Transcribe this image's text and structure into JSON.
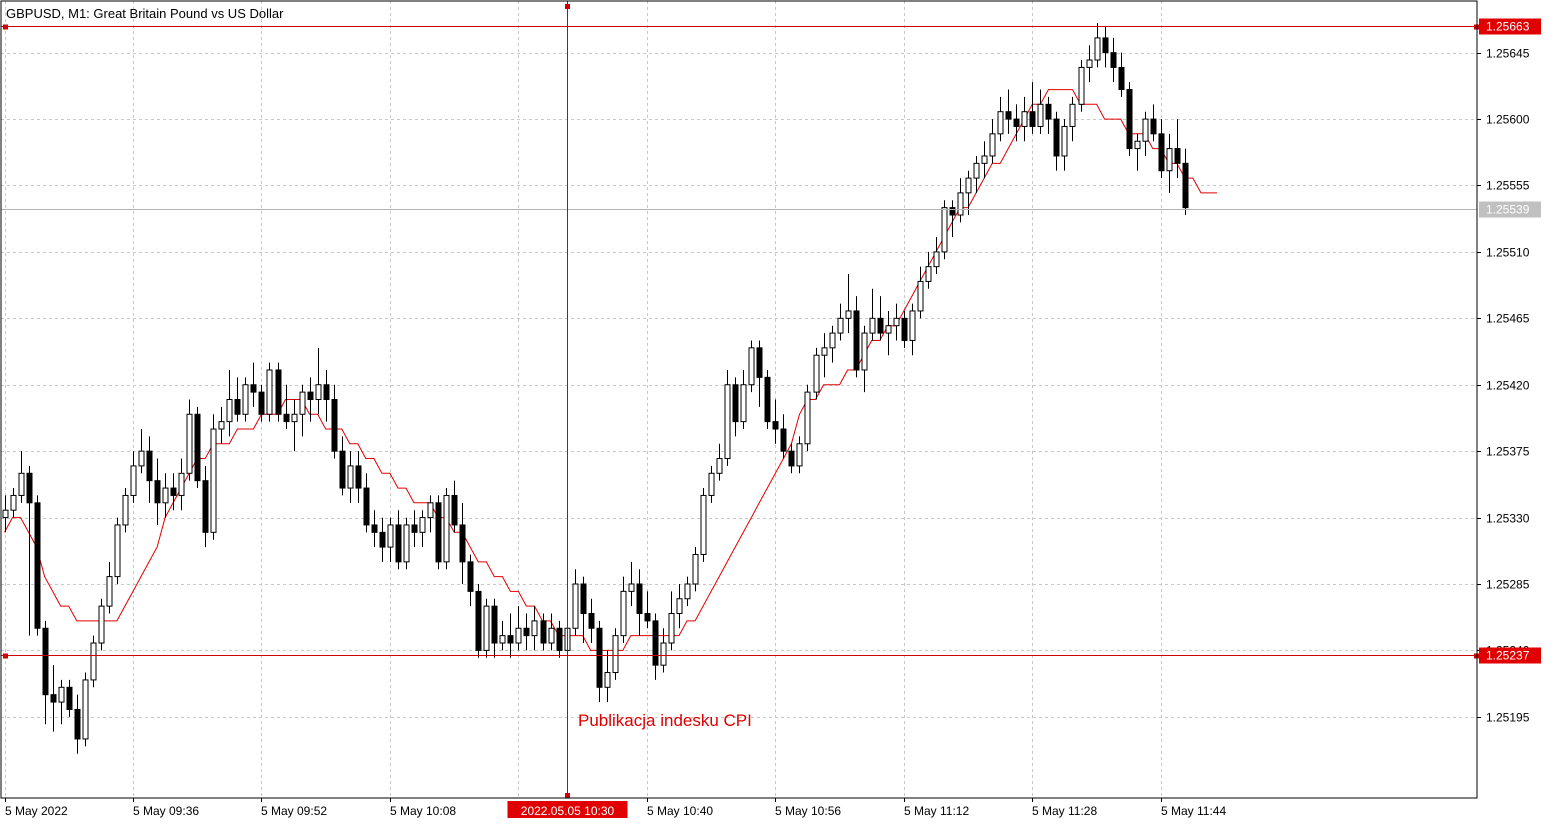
{
  "header": {
    "title": "GBPUSD, M1:  Great Britain Pound vs US Dollar"
  },
  "colors": {
    "background": "#ffffff",
    "grid": "#c8c8c8",
    "frame": "#000000",
    "bull_body": "#ffffff",
    "bear_body": "#000000",
    "candle_outline": "#000000",
    "moving_average": "#e00000",
    "crosshair": "#d00000",
    "price_label_bg": "#e00000",
    "price_label_text": "#ffffff",
    "current_price_line": "#b4b4b4",
    "current_price_label_bg": "#c0c0c0",
    "annotation": "#e00000"
  },
  "annotation": {
    "text": "Publikacja indesku CPI"
  },
  "chart_data": {
    "type": "candlestick",
    "symbol": "GBPUSD",
    "timeframe": "M1",
    "grid": true,
    "ylim": [
      1.2514,
      1.2568
    ],
    "y_ticks": [
      "1.25195",
      "1.25240",
      "1.25285",
      "1.25330",
      "1.25375",
      "1.25420",
      "1.25465",
      "1.25510",
      "1.25555",
      "1.25600",
      "1.25645"
    ],
    "x_ticks": [
      {
        "index": 0,
        "label": "5 May 2022"
      },
      {
        "index": 16,
        "label": "5 May 09:36"
      },
      {
        "index": 32,
        "label": "5 May 09:52"
      },
      {
        "index": 48,
        "label": "5 May 10:08"
      },
      {
        "index": 80,
        "label": "5 May 10:40"
      },
      {
        "index": 96,
        "label": "5 May 10:56"
      },
      {
        "index": 112,
        "label": "5 May 11:12"
      },
      {
        "index": 128,
        "label": "5 May 11:28"
      },
      {
        "index": 144,
        "label": "5 May 11:44"
      }
    ],
    "crosshair": {
      "index": 70,
      "time_label": "2022.05.05 10:30",
      "upper_price": "1.25663",
      "lower_price": "1.25237"
    },
    "current_price": "1.25539",
    "moving_average": {
      "values": [
        1.2532,
        1.2533,
        1.2533,
        1.2532,
        1.2531,
        1.2529,
        1.2528,
        1.2527,
        1.2527,
        1.2526,
        1.2526,
        1.2526,
        1.2526,
        1.2526,
        1.2526,
        1.2527,
        1.2528,
        1.2529,
        1.253,
        1.2531,
        1.2533,
        1.2534,
        1.2535,
        1.2536,
        1.2537,
        1.2537,
        1.2538,
        1.2538,
        1.2538,
        1.2539,
        1.2539,
        1.2539,
        1.254,
        1.254,
        1.254,
        1.2541,
        1.2541,
        1.2541,
        1.254,
        1.254,
        1.2539,
        1.2539,
        1.2539,
        1.2538,
        1.2538,
        1.2537,
        1.2537,
        1.2536,
        1.2536,
        1.2535,
        1.2535,
        1.2534,
        1.2534,
        1.2534,
        1.2533,
        1.2533,
        1.2532,
        1.2532,
        1.2531,
        1.253,
        1.253,
        1.2529,
        1.2529,
        1.2528,
        1.2528,
        1.2527,
        1.2527,
        1.2526,
        1.2526,
        1.2525,
        1.2525,
        1.2525,
        1.2525,
        1.2524,
        1.2524,
        1.2524,
        1.2524,
        1.2524,
        1.2525,
        1.2525,
        1.2525,
        1.2525,
        1.2525,
        1.2525,
        1.2525,
        1.2526,
        1.2526,
        1.2527,
        1.2528,
        1.2529,
        1.253,
        1.2531,
        1.2532,
        1.2533,
        1.2534,
        1.2535,
        1.2536,
        1.2537,
        1.2538,
        1.254,
        1.2541,
        1.2541,
        1.2542,
        1.2542,
        1.2542,
        1.2543,
        1.2543,
        1.2544,
        1.2545,
        1.2545,
        1.2546,
        1.2546,
        1.2547,
        1.2548,
        1.2549,
        1.255,
        1.2551,
        1.2552,
        1.2553,
        1.2554,
        1.2554,
        1.2555,
        1.2556,
        1.2557,
        1.2557,
        1.2558,
        1.2559,
        1.256,
        1.2561,
        1.2561,
        1.2562,
        1.2562,
        1.2562,
        1.2562,
        1.2561,
        1.2561,
        1.2561,
        1.256,
        1.256,
        1.256,
        1.2559,
        1.2559,
        1.2559,
        1.2558,
        1.2558,
        1.2557,
        1.2557,
        1.2556,
        1.2556,
        1.2555,
        1.2555,
        1.2555
      ]
    },
    "candles": [
      {
        "o": 1.2533,
        "h": 1.25345,
        "l": 1.2532,
        "c": 1.25335
      },
      {
        "o": 1.25335,
        "h": 1.2535,
        "l": 1.2533,
        "c": 1.25345
      },
      {
        "o": 1.25345,
        "h": 1.25375,
        "l": 1.2534,
        "c": 1.2536
      },
      {
        "o": 1.2536,
        "h": 1.25365,
        "l": 1.2525,
        "c": 1.2534
      },
      {
        "o": 1.2534,
        "h": 1.25345,
        "l": 1.2525,
        "c": 1.25255
      },
      {
        "o": 1.25255,
        "h": 1.2526,
        "l": 1.2519,
        "c": 1.2521
      },
      {
        "o": 1.2521,
        "h": 1.2523,
        "l": 1.25185,
        "c": 1.25205
      },
      {
        "o": 1.25205,
        "h": 1.2522,
        "l": 1.2519,
        "c": 1.25215
      },
      {
        "o": 1.25215,
        "h": 1.2522,
        "l": 1.25195,
        "c": 1.252
      },
      {
        "o": 1.252,
        "h": 1.2521,
        "l": 1.2517,
        "c": 1.2518
      },
      {
        "o": 1.2518,
        "h": 1.25225,
        "l": 1.25175,
        "c": 1.2522
      },
      {
        "o": 1.2522,
        "h": 1.2525,
        "l": 1.25215,
        "c": 1.25245
      },
      {
        "o": 1.25245,
        "h": 1.25275,
        "l": 1.2524,
        "c": 1.2527
      },
      {
        "o": 1.2527,
        "h": 1.253,
        "l": 1.25265,
        "c": 1.2529
      },
      {
        "o": 1.2529,
        "h": 1.2533,
        "l": 1.25285,
        "c": 1.25325
      },
      {
        "o": 1.25325,
        "h": 1.2535,
        "l": 1.2532,
        "c": 1.25345
      },
      {
        "o": 1.25345,
        "h": 1.25375,
        "l": 1.2534,
        "c": 1.25365
      },
      {
        "o": 1.25365,
        "h": 1.2539,
        "l": 1.2536,
        "c": 1.25375
      },
      {
        "o": 1.25375,
        "h": 1.25385,
        "l": 1.2534,
        "c": 1.25355
      },
      {
        "o": 1.25355,
        "h": 1.2537,
        "l": 1.25325,
        "c": 1.2534
      },
      {
        "o": 1.2534,
        "h": 1.2536,
        "l": 1.2533,
        "c": 1.2535
      },
      {
        "o": 1.2535,
        "h": 1.2536,
        "l": 1.25335,
        "c": 1.25345
      },
      {
        "o": 1.25345,
        "h": 1.2537,
        "l": 1.25335,
        "c": 1.2536
      },
      {
        "o": 1.2536,
        "h": 1.2541,
        "l": 1.25355,
        "c": 1.254
      },
      {
        "o": 1.254,
        "h": 1.25405,
        "l": 1.2535,
        "c": 1.25355
      },
      {
        "o": 1.25355,
        "h": 1.25365,
        "l": 1.2531,
        "c": 1.2532
      },
      {
        "o": 1.2532,
        "h": 1.254,
        "l": 1.25315,
        "c": 1.2539
      },
      {
        "o": 1.2539,
        "h": 1.25405,
        "l": 1.2538,
        "c": 1.25395
      },
      {
        "o": 1.25395,
        "h": 1.2543,
        "l": 1.25385,
        "c": 1.2541
      },
      {
        "o": 1.2541,
        "h": 1.25425,
        "l": 1.25395,
        "c": 1.254
      },
      {
        "o": 1.254,
        "h": 1.25425,
        "l": 1.25395,
        "c": 1.2542
      },
      {
        "o": 1.2542,
        "h": 1.25435,
        "l": 1.25405,
        "c": 1.25415
      },
      {
        "o": 1.25415,
        "h": 1.2542,
        "l": 1.25395,
        "c": 1.254
      },
      {
        "o": 1.254,
        "h": 1.25435,
        "l": 1.25395,
        "c": 1.2543
      },
      {
        "o": 1.2543,
        "h": 1.25435,
        "l": 1.25395,
        "c": 1.254
      },
      {
        "o": 1.254,
        "h": 1.2542,
        "l": 1.2539,
        "c": 1.25395
      },
      {
        "o": 1.25395,
        "h": 1.2541,
        "l": 1.25375,
        "c": 1.254
      },
      {
        "o": 1.254,
        "h": 1.2542,
        "l": 1.25385,
        "c": 1.25415
      },
      {
        "o": 1.25415,
        "h": 1.25425,
        "l": 1.25395,
        "c": 1.2541
      },
      {
        "o": 1.2541,
        "h": 1.25445,
        "l": 1.254,
        "c": 1.2542
      },
      {
        "o": 1.2542,
        "h": 1.2543,
        "l": 1.25395,
        "c": 1.2541
      },
      {
        "o": 1.2541,
        "h": 1.2542,
        "l": 1.2537,
        "c": 1.25375
      },
      {
        "o": 1.25375,
        "h": 1.25385,
        "l": 1.25345,
        "c": 1.2535
      },
      {
        "o": 1.2535,
        "h": 1.25375,
        "l": 1.2534,
        "c": 1.25365
      },
      {
        "o": 1.25365,
        "h": 1.25375,
        "l": 1.2534,
        "c": 1.2535
      },
      {
        "o": 1.2535,
        "h": 1.2536,
        "l": 1.2532,
        "c": 1.25325
      },
      {
        "o": 1.25325,
        "h": 1.25335,
        "l": 1.2531,
        "c": 1.2532
      },
      {
        "o": 1.2532,
        "h": 1.2533,
        "l": 1.253,
        "c": 1.2531
      },
      {
        "o": 1.2531,
        "h": 1.2533,
        "l": 1.253,
        "c": 1.25325
      },
      {
        "o": 1.25325,
        "h": 1.25335,
        "l": 1.25295,
        "c": 1.253
      },
      {
        "o": 1.253,
        "h": 1.2533,
        "l": 1.25295,
        "c": 1.25325
      },
      {
        "o": 1.25325,
        "h": 1.25335,
        "l": 1.2531,
        "c": 1.2532
      },
      {
        "o": 1.2532,
        "h": 1.25335,
        "l": 1.2531,
        "c": 1.2533
      },
      {
        "o": 1.2533,
        "h": 1.25345,
        "l": 1.2532,
        "c": 1.2534
      },
      {
        "o": 1.2534,
        "h": 1.25345,
        "l": 1.25295,
        "c": 1.253
      },
      {
        "o": 1.253,
        "h": 1.2535,
        "l": 1.25295,
        "c": 1.25345
      },
      {
        "o": 1.25345,
        "h": 1.25355,
        "l": 1.2532,
        "c": 1.25325
      },
      {
        "o": 1.25325,
        "h": 1.2534,
        "l": 1.25285,
        "c": 1.253
      },
      {
        "o": 1.253,
        "h": 1.25305,
        "l": 1.2527,
        "c": 1.2528
      },
      {
        "o": 1.2528,
        "h": 1.25285,
        "l": 1.25235,
        "c": 1.2524
      },
      {
        "o": 1.2524,
        "h": 1.25275,
        "l": 1.25235,
        "c": 1.2527
      },
      {
        "o": 1.2527,
        "h": 1.25275,
        "l": 1.25235,
        "c": 1.25245
      },
      {
        "o": 1.25245,
        "h": 1.2526,
        "l": 1.2524,
        "c": 1.2525
      },
      {
        "o": 1.2525,
        "h": 1.25265,
        "l": 1.25235,
        "c": 1.25245
      },
      {
        "o": 1.25245,
        "h": 1.2527,
        "l": 1.2524,
        "c": 1.25255
      },
      {
        "o": 1.25255,
        "h": 1.25265,
        "l": 1.2524,
        "c": 1.2525
      },
      {
        "o": 1.2525,
        "h": 1.2527,
        "l": 1.2524,
        "c": 1.2526
      },
      {
        "o": 1.2526,
        "h": 1.25265,
        "l": 1.2524,
        "c": 1.25245
      },
      {
        "o": 1.25245,
        "h": 1.25265,
        "l": 1.2524,
        "c": 1.25255
      },
      {
        "o": 1.25255,
        "h": 1.2526,
        "l": 1.25235,
        "c": 1.2524
      },
      {
        "o": 1.2524,
        "h": 1.25265,
        "l": 1.2523,
        "c": 1.25255
      },
      {
        "o": 1.25255,
        "h": 1.25295,
        "l": 1.2525,
        "c": 1.25285
      },
      {
        "o": 1.25285,
        "h": 1.2529,
        "l": 1.25245,
        "c": 1.25265
      },
      {
        "o": 1.25265,
        "h": 1.25275,
        "l": 1.25245,
        "c": 1.25255
      },
      {
        "o": 1.25255,
        "h": 1.2526,
        "l": 1.25205,
        "c": 1.25215
      },
      {
        "o": 1.25215,
        "h": 1.2524,
        "l": 1.25205,
        "c": 1.25225
      },
      {
        "o": 1.25225,
        "h": 1.25255,
        "l": 1.2522,
        "c": 1.2525
      },
      {
        "o": 1.2525,
        "h": 1.2529,
        "l": 1.25245,
        "c": 1.2528
      },
      {
        "o": 1.2528,
        "h": 1.253,
        "l": 1.2527,
        "c": 1.25285
      },
      {
        "o": 1.25285,
        "h": 1.25295,
        "l": 1.2525,
        "c": 1.25265
      },
      {
        "o": 1.25265,
        "h": 1.2528,
        "l": 1.25255,
        "c": 1.2526
      },
      {
        "o": 1.2526,
        "h": 1.25265,
        "l": 1.2522,
        "c": 1.2523
      },
      {
        "o": 1.2523,
        "h": 1.25255,
        "l": 1.25225,
        "c": 1.25245
      },
      {
        "o": 1.25245,
        "h": 1.2528,
        "l": 1.2524,
        "c": 1.25265
      },
      {
        "o": 1.25265,
        "h": 1.25285,
        "l": 1.25255,
        "c": 1.25275
      },
      {
        "o": 1.25275,
        "h": 1.2529,
        "l": 1.2527,
        "c": 1.25285
      },
      {
        "o": 1.25285,
        "h": 1.2531,
        "l": 1.2528,
        "c": 1.25305
      },
      {
        "o": 1.25305,
        "h": 1.2535,
        "l": 1.253,
        "c": 1.25345
      },
      {
        "o": 1.25345,
        "h": 1.25365,
        "l": 1.2534,
        "c": 1.2536
      },
      {
        "o": 1.2536,
        "h": 1.2538,
        "l": 1.25355,
        "c": 1.2537
      },
      {
        "o": 1.2537,
        "h": 1.2543,
        "l": 1.25365,
        "c": 1.2542
      },
      {
        "o": 1.2542,
        "h": 1.25425,
        "l": 1.25385,
        "c": 1.25395
      },
      {
        "o": 1.25395,
        "h": 1.2543,
        "l": 1.2539,
        "c": 1.2542
      },
      {
        "o": 1.2542,
        "h": 1.2545,
        "l": 1.25415,
        "c": 1.25445
      },
      {
        "o": 1.25445,
        "h": 1.2545,
        "l": 1.25405,
        "c": 1.25425
      },
      {
        "o": 1.25425,
        "h": 1.2543,
        "l": 1.2539,
        "c": 1.25395
      },
      {
        "o": 1.25395,
        "h": 1.2541,
        "l": 1.2538,
        "c": 1.2539
      },
      {
        "o": 1.2539,
        "h": 1.254,
        "l": 1.2537,
        "c": 1.25375
      },
      {
        "o": 1.25375,
        "h": 1.2538,
        "l": 1.2536,
        "c": 1.25365
      },
      {
        "o": 1.25365,
        "h": 1.25385,
        "l": 1.2536,
        "c": 1.2538
      },
      {
        "o": 1.2538,
        "h": 1.2542,
        "l": 1.25375,
        "c": 1.25415
      },
      {
        "o": 1.25415,
        "h": 1.25445,
        "l": 1.2541,
        "c": 1.2544
      },
      {
        "o": 1.2544,
        "h": 1.25455,
        "l": 1.25425,
        "c": 1.25445
      },
      {
        "o": 1.25445,
        "h": 1.2546,
        "l": 1.25435,
        "c": 1.25455
      },
      {
        "o": 1.25455,
        "h": 1.25475,
        "l": 1.2545,
        "c": 1.25465
      },
      {
        "o": 1.25465,
        "h": 1.25495,
        "l": 1.25455,
        "c": 1.2547
      },
      {
        "o": 1.2547,
        "h": 1.2548,
        "l": 1.25425,
        "c": 1.2543
      },
      {
        "o": 1.2543,
        "h": 1.2546,
        "l": 1.25415,
        "c": 1.25455
      },
      {
        "o": 1.25455,
        "h": 1.25485,
        "l": 1.2545,
        "c": 1.25465
      },
      {
        "o": 1.25465,
        "h": 1.2548,
        "l": 1.2545,
        "c": 1.25455
      },
      {
        "o": 1.25455,
        "h": 1.2547,
        "l": 1.2544,
        "c": 1.2546
      },
      {
        "o": 1.2546,
        "h": 1.25475,
        "l": 1.2545,
        "c": 1.25465
      },
      {
        "o": 1.25465,
        "h": 1.2547,
        "l": 1.25445,
        "c": 1.2545
      },
      {
        "o": 1.2545,
        "h": 1.25475,
        "l": 1.2544,
        "c": 1.2547
      },
      {
        "o": 1.2547,
        "h": 1.255,
        "l": 1.25465,
        "c": 1.2549
      },
      {
        "o": 1.2549,
        "h": 1.2551,
        "l": 1.25485,
        "c": 1.255
      },
      {
        "o": 1.255,
        "h": 1.2552,
        "l": 1.25495,
        "c": 1.2551
      },
      {
        "o": 1.2551,
        "h": 1.25545,
        "l": 1.25505,
        "c": 1.2554
      },
      {
        "o": 1.2554,
        "h": 1.25545,
        "l": 1.2552,
        "c": 1.25535
      },
      {
        "o": 1.25535,
        "h": 1.2556,
        "l": 1.2553,
        "c": 1.2555
      },
      {
        "o": 1.2555,
        "h": 1.25565,
        "l": 1.25535,
        "c": 1.2556
      },
      {
        "o": 1.2556,
        "h": 1.25575,
        "l": 1.2555,
        "c": 1.2557
      },
      {
        "o": 1.2557,
        "h": 1.25585,
        "l": 1.2556,
        "c": 1.25575
      },
      {
        "o": 1.25575,
        "h": 1.256,
        "l": 1.2557,
        "c": 1.2559
      },
      {
        "o": 1.2559,
        "h": 1.25615,
        "l": 1.25585,
        "c": 1.25605
      },
      {
        "o": 1.25605,
        "h": 1.2562,
        "l": 1.2559,
        "c": 1.256
      },
      {
        "o": 1.256,
        "h": 1.2561,
        "l": 1.25585,
        "c": 1.25595
      },
      {
        "o": 1.25595,
        "h": 1.25615,
        "l": 1.25585,
        "c": 1.25605
      },
      {
        "o": 1.25605,
        "h": 1.25625,
        "l": 1.2559,
        "c": 1.25595
      },
      {
        "o": 1.25595,
        "h": 1.2562,
        "l": 1.2559,
        "c": 1.2561
      },
      {
        "o": 1.2561,
        "h": 1.25615,
        "l": 1.2559,
        "c": 1.256
      },
      {
        "o": 1.256,
        "h": 1.25605,
        "l": 1.25565,
        "c": 1.25575
      },
      {
        "o": 1.25575,
        "h": 1.256,
        "l": 1.25565,
        "c": 1.25595
      },
      {
        "o": 1.25595,
        "h": 1.25615,
        "l": 1.25585,
        "c": 1.2561
      },
      {
        "o": 1.2561,
        "h": 1.2564,
        "l": 1.25605,
        "c": 1.25635
      },
      {
        "o": 1.25635,
        "h": 1.2565,
        "l": 1.25625,
        "c": 1.2564
      },
      {
        "o": 1.2564,
        "h": 1.25665,
        "l": 1.25635,
        "c": 1.25655
      },
      {
        "o": 1.25655,
        "h": 1.25663,
        "l": 1.25635,
        "c": 1.25645
      },
      {
        "o": 1.25645,
        "h": 1.25655,
        "l": 1.25625,
        "c": 1.25635
      },
      {
        "o": 1.25635,
        "h": 1.25645,
        "l": 1.25615,
        "c": 1.2562
      },
      {
        "o": 1.2562,
        "h": 1.25625,
        "l": 1.25575,
        "c": 1.2558
      },
      {
        "o": 1.2558,
        "h": 1.2559,
        "l": 1.25565,
        "c": 1.25585
      },
      {
        "o": 1.25585,
        "h": 1.25605,
        "l": 1.25575,
        "c": 1.256
      },
      {
        "o": 1.256,
        "h": 1.2561,
        "l": 1.25585,
        "c": 1.2559
      },
      {
        "o": 1.2559,
        "h": 1.256,
        "l": 1.2556,
        "c": 1.25565
      },
      {
        "o": 1.25565,
        "h": 1.2559,
        "l": 1.2555,
        "c": 1.2558
      },
      {
        "o": 1.2558,
        "h": 1.256,
        "l": 1.2556,
        "c": 1.2557
      },
      {
        "o": 1.2557,
        "h": 1.2558,
        "l": 1.25535,
        "c": 1.2554
      }
    ]
  }
}
